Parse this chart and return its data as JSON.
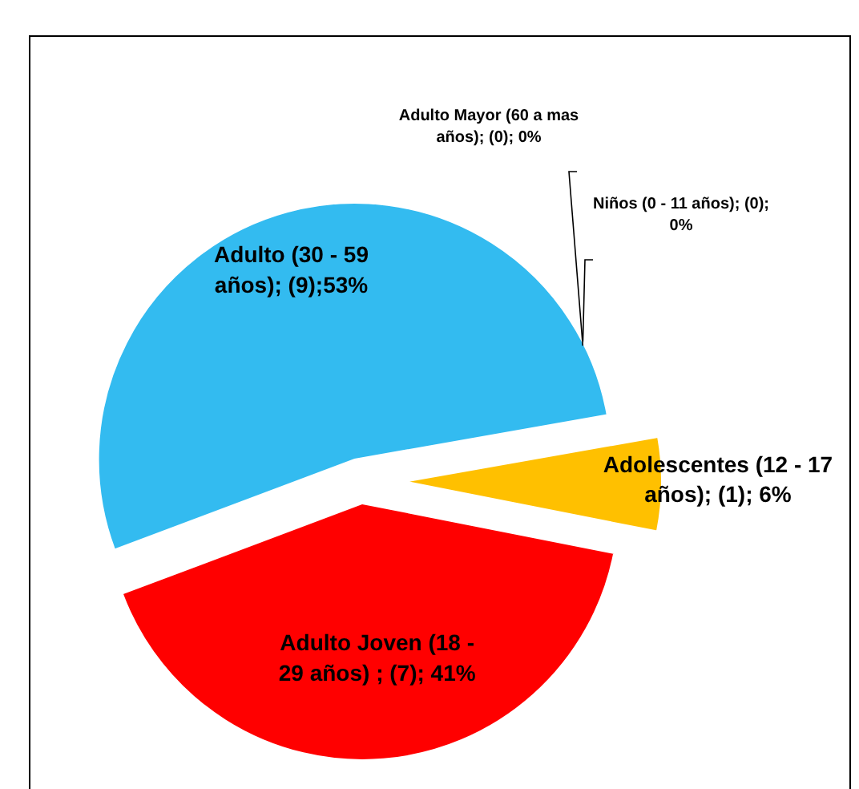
{
  "chart_data": {
    "type": "pie",
    "categories": [
      "Niños (0 - 11 años); (0); 0%",
      "Adolescentes  (12 - 17 años); (1); 6%",
      "Adulto Joven (18 - 29 años) ; (7); 41%",
      "Adulto (30 - 59 años); (9);53%",
      "Adulto Mayor (60 a mas años); (0); 0%"
    ],
    "values": [
      0,
      1,
      7,
      9,
      0
    ],
    "colors": [
      null,
      "#ffc000",
      "#ff0000",
      "#33bbf0",
      null
    ]
  }
}
